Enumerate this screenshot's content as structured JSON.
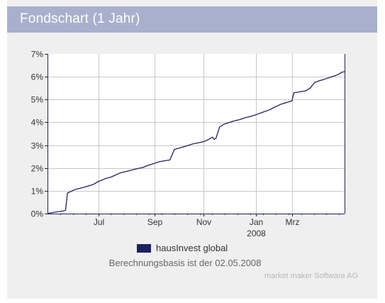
{
  "header": {
    "title": "Fondschart (1 Jahr)"
  },
  "colors": {
    "header_bg": "#a8b0cd",
    "panel_bg": "#efefef",
    "plot_bg": "#ffffff",
    "line": "#1f2061",
    "axis": "#1f2061",
    "grid": "#c8c8c8"
  },
  "chart_data": {
    "type": "line",
    "title": "",
    "xlabel": "",
    "ylabel": "",
    "x_unit": "days",
    "xlim": [
      0,
      328
    ],
    "ylim": [
      0,
      7
    ],
    "grid": true,
    "y_ticks": [
      {
        "value": 0,
        "label": "0%"
      },
      {
        "value": 1,
        "label": "1%"
      },
      {
        "value": 2,
        "label": "2%"
      },
      {
        "value": 3,
        "label": "3%"
      },
      {
        "value": 4,
        "label": "4%"
      },
      {
        "value": 5,
        "label": "5%"
      },
      {
        "value": 6,
        "label": "6%"
      },
      {
        "value": 7,
        "label": "7%"
      }
    ],
    "x_ticks": [
      {
        "value": 56,
        "label": "Jul",
        "sublabel": ""
      },
      {
        "value": 118,
        "label": "Sep",
        "sublabel": ""
      },
      {
        "value": 172,
        "label": "Nov",
        "sublabel": ""
      },
      {
        "value": 230,
        "label": "Jan",
        "sublabel": "2008"
      },
      {
        "value": 270,
        "label": "Mrz",
        "sublabel": ""
      }
    ],
    "legend": {
      "placement": "bottom"
    },
    "series": [
      {
        "name": "hausInvest global",
        "x": [
          0,
          6,
          12,
          18,
          20,
          22,
          30,
          40,
          50,
          56,
          65,
          70,
          80,
          90,
          100,
          105,
          110,
          118,
          123,
          130,
          135,
          140,
          143,
          148,
          152,
          160,
          172,
          178,
          182,
          184,
          186,
          190,
          195,
          205,
          212,
          218,
          225,
          230,
          238,
          245,
          250,
          258,
          265,
          268,
          270,
          272,
          276,
          280,
          285,
          290,
          293,
          295,
          300,
          305,
          310,
          318,
          322,
          325,
          328
        ],
        "y": [
          0.0,
          0.05,
          0.08,
          0.12,
          0.15,
          0.9,
          1.05,
          1.15,
          1.27,
          1.4,
          1.55,
          1.6,
          1.78,
          1.88,
          1.98,
          2.02,
          2.1,
          2.2,
          2.27,
          2.32,
          2.35,
          2.8,
          2.85,
          2.9,
          2.95,
          3.05,
          3.15,
          3.25,
          3.35,
          3.25,
          3.3,
          3.8,
          3.92,
          4.05,
          4.12,
          4.2,
          4.27,
          4.33,
          4.45,
          4.55,
          4.65,
          4.8,
          4.88,
          4.92,
          4.95,
          5.3,
          5.32,
          5.35,
          5.38,
          5.5,
          5.65,
          5.75,
          5.82,
          5.88,
          5.95,
          6.05,
          6.12,
          6.2,
          6.22
        ]
      }
    ]
  },
  "footer": {
    "basis_text": "Berechnungsbasis ist der 02.05.2008",
    "credit": "market maker Software AG"
  }
}
